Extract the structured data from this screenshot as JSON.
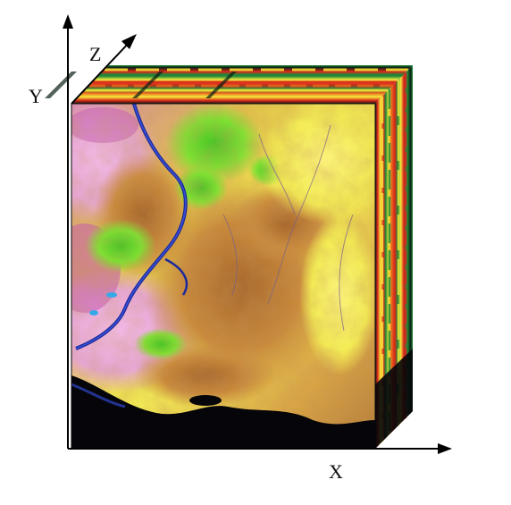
{
  "axes": {
    "x_label": "X",
    "y_label": "Y",
    "z_label": "Z"
  },
  "colors": {
    "axis": "#000000",
    "background": "#ffffff",
    "band_red": "#d8261a",
    "band_yellow": "#f7ea3a",
    "band_green": "#1f8a3a",
    "band_dark": "#0b1f14",
    "terrain_yellow": "#f3ec55",
    "terrain_tan": "#c98a3c",
    "terrain_brown": "#8e5a2a",
    "terrain_green": "#7ee032",
    "terrain_pink": "#e7a7d6",
    "terrain_magenta": "#c45bb0",
    "river_blue": "#1b2a9b",
    "shadow_black": "#05050a"
  },
  "figure": {
    "type": "hyperspectral-data-cube",
    "faces": [
      "front-image",
      "top-spectral-bands",
      "side-spectral-bands"
    ]
  }
}
